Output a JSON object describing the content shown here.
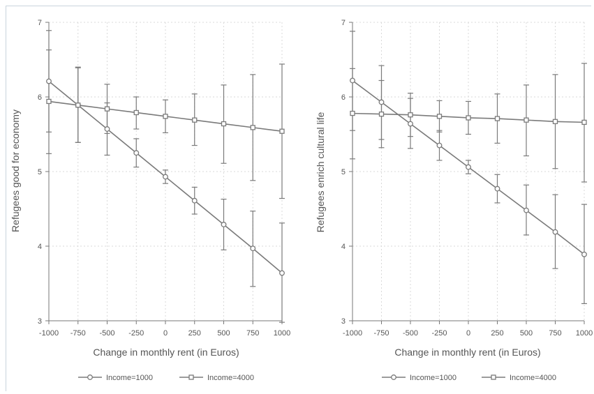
{
  "colors": {
    "series_line": "#7a7a7a",
    "grid": "#d9d9d9",
    "text": "#555555",
    "frame": "#c9d3dc"
  },
  "chart_data": [
    {
      "type": "line",
      "xlabel": "Change in monthly rent (in Euros)",
      "ylabel": "Refugees good for economy",
      "x": [
        -1000,
        -750,
        -500,
        -250,
        0,
        250,
        500,
        750,
        1000
      ],
      "x_tick_labels": [
        "-1000",
        "-750",
        "-500",
        "-250",
        "0",
        "250",
        "500",
        "750",
        "1000"
      ],
      "y_ticks": [
        3,
        4,
        5,
        6,
        7
      ],
      "ylim": [
        3,
        7
      ],
      "xlim": [
        -1000,
        1000
      ],
      "grid": true,
      "legend_position": "bottom",
      "series": [
        {
          "name": "Income=1000",
          "marker": "circle",
          "values": [
            6.21,
            5.89,
            5.57,
            5.25,
            4.93,
            4.61,
            4.29,
            3.97,
            3.64
          ],
          "ci_low": [
            5.53,
            5.39,
            5.22,
            5.06,
            4.84,
            4.43,
            3.95,
            3.46,
            2.98
          ],
          "ci_high": [
            6.89,
            6.4,
            5.92,
            5.44,
            5.02,
            4.79,
            4.63,
            4.47,
            4.31
          ]
        },
        {
          "name": "Income=4000",
          "marker": "square",
          "values": [
            5.94,
            5.89,
            5.84,
            5.79,
            5.74,
            5.69,
            5.64,
            5.59,
            5.54
          ],
          "ci_low": [
            5.24,
            5.39,
            5.51,
            5.57,
            5.52,
            5.35,
            5.11,
            4.88,
            4.64
          ],
          "ci_high": [
            6.63,
            6.39,
            6.17,
            6.0,
            5.96,
            6.04,
            6.16,
            6.3,
            6.44
          ]
        }
      ]
    },
    {
      "type": "line",
      "xlabel": "Change in monthly rent (in Euros)",
      "ylabel": "Refugees enrich cultural life",
      "x": [
        -1000,
        -750,
        -500,
        -250,
        0,
        250,
        500,
        750,
        1000
      ],
      "x_tick_labels": [
        "-1000",
        "-750",
        "-500",
        "-250",
        "0",
        "250",
        "500",
        "750",
        "1000"
      ],
      "y_ticks": [
        3,
        4,
        5,
        6,
        7
      ],
      "ylim": [
        3,
        7
      ],
      "xlim": [
        -1000,
        1000
      ],
      "grid": true,
      "legend_position": "bottom",
      "series": [
        {
          "name": "Income=1000",
          "marker": "circle",
          "values": [
            6.22,
            5.93,
            5.64,
            5.35,
            5.06,
            4.77,
            4.48,
            4.19,
            3.89
          ],
          "ci_low": [
            5.55,
            5.43,
            5.31,
            5.15,
            4.97,
            4.58,
            4.15,
            3.7,
            3.23
          ],
          "ci_high": [
            6.88,
            6.42,
            5.98,
            5.55,
            5.15,
            4.96,
            4.82,
            4.69,
            4.56
          ]
        },
        {
          "name": "Income=4000",
          "marker": "square",
          "values": [
            5.78,
            5.77,
            5.76,
            5.74,
            5.72,
            5.71,
            5.69,
            5.67,
            5.66
          ],
          "ci_low": [
            5.17,
            5.32,
            5.47,
            5.53,
            5.5,
            5.38,
            5.21,
            5.04,
            4.86
          ],
          "ci_high": [
            6.38,
            6.22,
            6.05,
            5.95,
            5.94,
            6.04,
            6.16,
            6.3,
            6.45
          ]
        }
      ]
    }
  ]
}
